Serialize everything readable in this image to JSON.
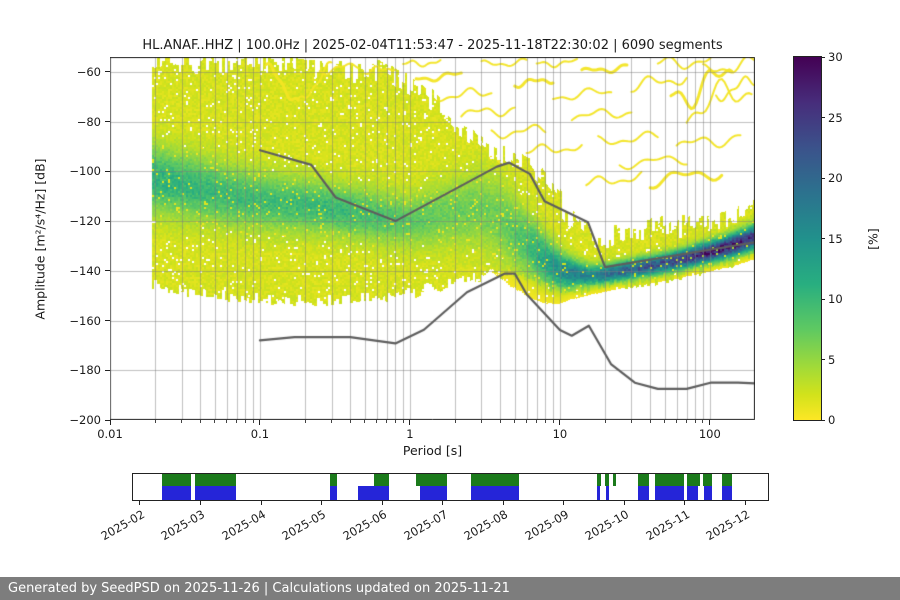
{
  "page": {
    "footer_text": "Generated by SeedPSD on 2025-11-26 | Calculations updated on 2025-11-21"
  },
  "chart_data": {
    "type": "heatmap",
    "title": "HL.ANAF..HHZ | 100.0Hz | 2025-02-04T11:53:47 - 2025-11-18T22:30:02 | 6090 segments",
    "xlabel": "Period [s]",
    "ylabel": "Amplitude [m²/s⁴/Hz] [dB]",
    "xscale": "log",
    "xlim": [
      0.01,
      200
    ],
    "ylim": [
      -200,
      -54
    ],
    "grid": true,
    "x_tick_values": [
      0.01,
      0.1,
      1,
      10,
      100
    ],
    "x_tick_labels": [
      "0.01",
      "0.1",
      "1",
      "10",
      "100"
    ],
    "y_tick_values": [
      -60,
      -80,
      -100,
      -120,
      -140,
      -160,
      -180,
      -200
    ],
    "y_tick_labels": [
      "−60",
      "−80",
      "−100",
      "−120",
      "−140",
      "−160",
      "−180",
      "−200"
    ],
    "colorbar": {
      "label": "[%]",
      "min": 0,
      "max": 30,
      "tick_values": [
        0,
        5,
        10,
        15,
        20,
        25,
        30
      ],
      "tick_labels": [
        "0",
        "5",
        "10",
        "15",
        "20",
        "25",
        "30"
      ],
      "colormap": "viridis_r",
      "stops": [
        {
          "v": 0.0,
          "c": "#fde725"
        },
        {
          "v": 0.07,
          "c": "#d2e21b"
        },
        {
          "v": 0.14,
          "c": "#a5db36"
        },
        {
          "v": 0.25,
          "c": "#5ec962"
        },
        {
          "v": 0.375,
          "c": "#28ae80"
        },
        {
          "v": 0.5,
          "c": "#21918c"
        },
        {
          "v": 0.625,
          "c": "#2c728e"
        },
        {
          "v": 0.75,
          "c": "#3b528b"
        },
        {
          "v": 0.875,
          "c": "#472d7b"
        },
        {
          "v": 1.0,
          "c": "#440154"
        }
      ]
    },
    "noise_models": {
      "color": "#5e5e5e",
      "high_noise_model": [
        [
          0.1,
          -91.5
        ],
        [
          0.22,
          -97.4
        ],
        [
          0.32,
          -110.5
        ],
        [
          0.8,
          -120.0
        ],
        [
          3.8,
          -98.1
        ],
        [
          4.6,
          -96.5
        ],
        [
          6.3,
          -101.0
        ],
        [
          7.9,
          -112.0
        ],
        [
          15.4,
          -120.5
        ],
        [
          20.0,
          -138.5
        ],
        [
          200.0,
          -128.5
        ]
      ],
      "low_noise_model": [
        [
          0.1,
          -168.0
        ],
        [
          0.17,
          -166.7
        ],
        [
          0.4,
          -166.7
        ],
        [
          0.8,
          -169.2
        ],
        [
          1.24,
          -163.7
        ],
        [
          2.4,
          -148.6
        ],
        [
          4.3,
          -141.1
        ],
        [
          5.0,
          -141.1
        ],
        [
          6.0,
          -149.4
        ],
        [
          10.0,
          -163.8
        ],
        [
          12.0,
          -166.1
        ],
        [
          15.6,
          -162.1
        ],
        [
          21.9,
          -177.5
        ],
        [
          31.6,
          -185.0
        ],
        [
          45.0,
          -187.5
        ],
        [
          70.0,
          -187.5
        ],
        [
          101.0,
          -185.0
        ],
        [
          154.0,
          -185.0
        ],
        [
          200.0,
          -185.3
        ]
      ]
    },
    "ppsd": {
      "period_data_min": 0.019,
      "envelope_level_pct": 1.8,
      "envelope_top": [
        [
          0.019,
          -58
        ],
        [
          0.03,
          -56
        ],
        [
          0.06,
          -56
        ],
        [
          0.12,
          -56
        ],
        [
          0.25,
          -57
        ],
        [
          0.45,
          -58
        ],
        [
          0.7,
          -61
        ],
        [
          1.0,
          -65
        ],
        [
          1.5,
          -73
        ],
        [
          2.0,
          -80
        ],
        [
          3.0,
          -88
        ],
        [
          4.0,
          -93
        ],
        [
          5.0,
          -95
        ],
        [
          6.5,
          -98
        ],
        [
          8.0,
          -104
        ],
        [
          10.0,
          -112
        ],
        [
          13.0,
          -121
        ],
        [
          16.0,
          -126
        ],
        [
          20.0,
          -127
        ],
        [
          30.0,
          -126
        ],
        [
          50.0,
          -124
        ],
        [
          100.0,
          -121
        ],
        [
          200.0,
          -116
        ]
      ],
      "envelope_bottom": [
        [
          0.019,
          -146
        ],
        [
          0.04,
          -149
        ],
        [
          0.08,
          -151
        ],
        [
          0.15,
          -152
        ],
        [
          0.3,
          -152
        ],
        [
          0.6,
          -151
        ],
        [
          1.0,
          -149
        ],
        [
          1.6,
          -146
        ],
        [
          2.5,
          -143
        ],
        [
          4.0,
          -141
        ],
        [
          6.0,
          -143
        ],
        [
          9.0,
          -147
        ],
        [
          12.0,
          -148
        ],
        [
          16.0,
          -147
        ],
        [
          20.0,
          -146.5
        ],
        [
          30.0,
          -145
        ],
        [
          50.0,
          -143
        ],
        [
          100.0,
          -139
        ],
        [
          200.0,
          -134
        ]
      ],
      "band_center": [
        [
          0.019,
          -103
        ],
        [
          0.04,
          -107
        ],
        [
          0.08,
          -111
        ],
        [
          0.15,
          -113
        ],
        [
          0.3,
          -115
        ],
        [
          0.6,
          -118
        ],
        [
          1.0,
          -120
        ],
        [
          1.8,
          -117
        ],
        [
          3.0,
          -115
        ],
        [
          4.0,
          -119
        ],
        [
          5.0,
          -125
        ],
        [
          6.5,
          -131
        ],
        [
          8.0,
          -136
        ],
        [
          10.0,
          -140
        ],
        [
          13.0,
          -141.5
        ],
        [
          16.0,
          -142
        ],
        [
          20.0,
          -141.5
        ],
        [
          30.0,
          -139.5
        ],
        [
          50.0,
          -137
        ],
        [
          70.0,
          -135
        ],
        [
          100.0,
          -132.5
        ],
        [
          140.0,
          -130
        ],
        [
          200.0,
          -126.5
        ]
      ],
      "band_sigma": [
        [
          0.019,
          9
        ],
        [
          0.08,
          8
        ],
        [
          0.3,
          7
        ],
        [
          1.0,
          7
        ],
        [
          2.0,
          9
        ],
        [
          4.0,
          11
        ],
        [
          6.0,
          9
        ],
        [
          9.0,
          6
        ],
        [
          12.0,
          4
        ],
        [
          16.0,
          3
        ],
        [
          20.0,
          2.6
        ],
        [
          50.0,
          2.6
        ],
        [
          100.0,
          2.8
        ],
        [
          200.0,
          3.2
        ]
      ],
      "band_peak_pct": [
        [
          0.019,
          9
        ],
        [
          0.05,
          8
        ],
        [
          0.1,
          7.5
        ],
        [
          0.3,
          8
        ],
        [
          0.6,
          7
        ],
        [
          1.0,
          6
        ],
        [
          2.0,
          5
        ],
        [
          4.0,
          5
        ],
        [
          6.0,
          7
        ],
        [
          9.0,
          12
        ],
        [
          12.0,
          15
        ],
        [
          16.0,
          14
        ],
        [
          20.0,
          17
        ],
        [
          30.0,
          19
        ],
        [
          50.0,
          21
        ],
        [
          70.0,
          23
        ],
        [
          100.0,
          26
        ],
        [
          140.0,
          27
        ],
        [
          200.0,
          23
        ]
      ],
      "streaks": [
        [
          0.11,
          -57,
          0.18,
          -73,
          1.5
        ],
        [
          0.18,
          -73,
          0.3,
          -57,
          1.5
        ],
        [
          0.25,
          -60,
          0.45,
          -57,
          1.0
        ],
        [
          0.5,
          -60,
          0.8,
          -58,
          1.0
        ],
        [
          0.9,
          -57,
          1.6,
          -56,
          1.0
        ],
        [
          1.1,
          -63,
          2.2,
          -61,
          1.0
        ],
        [
          1.6,
          -70,
          3.5,
          -68,
          1.5
        ],
        [
          2.2,
          -77,
          5.0,
          -75,
          1.5
        ],
        [
          3.0,
          -57,
          6.0,
          -56,
          1.0
        ],
        [
          3.5,
          -85,
          8.0,
          -83,
          1.5
        ],
        [
          5.0,
          -65,
          9.0,
          -63,
          1.0
        ],
        [
          6.0,
          -92,
          14.0,
          -90,
          1.5
        ],
        [
          7.0,
          -57,
          13.0,
          -56,
          1.0
        ],
        [
          9.0,
          -70,
          22.0,
          -68,
          1.5
        ],
        [
          12.0,
          -78,
          30.0,
          -76,
          1.5
        ],
        [
          14.0,
          -60,
          28.0,
          -58,
          1.0
        ],
        [
          18.0,
          -88,
          45.0,
          -86,
          1.5
        ],
        [
          25.0,
          -97,
          70.0,
          -95,
          1.5
        ],
        [
          30.0,
          -66,
          70.0,
          -62,
          2.0
        ],
        [
          45.0,
          -57,
          110.0,
          -55,
          2.0
        ],
        [
          55.0,
          -70,
          140.0,
          -62,
          5.0
        ],
        [
          70.0,
          -76,
          190.0,
          -66,
          5.0
        ],
        [
          60.0,
          -90,
          160.0,
          -86,
          2.0
        ],
        [
          90.0,
          -60,
          200.0,
          -56,
          2.0
        ],
        [
          110.0,
          -70,
          200.0,
          -63,
          2.0
        ],
        [
          40.0,
          -104,
          120.0,
          -100,
          2.0
        ],
        [
          15.0,
          -105,
          35.0,
          -102,
          1.5
        ]
      ]
    },
    "availability": {
      "month_labels": [
        "2025-02",
        "2025-03",
        "2025-04",
        "2025-05",
        "2025-06",
        "2025-07",
        "2025-08",
        "2025-09",
        "2025-10",
        "2025-11",
        "2025-12"
      ],
      "green_color": "#1b7a1b",
      "blue_color": "#2525d8",
      "green_segments": [
        [
          0.046,
          0.092
        ],
        [
          0.098,
          0.163
        ],
        [
          0.31,
          0.322
        ],
        [
          0.38,
          0.403
        ],
        [
          0.445,
          0.494
        ],
        [
          0.532,
          0.608
        ],
        [
          0.731,
          0.737
        ],
        [
          0.744,
          0.749
        ],
        [
          0.756,
          0.761
        ],
        [
          0.795,
          0.812
        ],
        [
          0.822,
          0.868
        ],
        [
          0.872,
          0.893
        ],
        [
          0.898,
          0.912
        ],
        [
          0.927,
          0.943
        ]
      ],
      "blue_segments": [
        [
          0.046,
          0.092
        ],
        [
          0.098,
          0.163
        ],
        [
          0.311,
          0.322
        ],
        [
          0.355,
          0.403
        ],
        [
          0.452,
          0.494
        ],
        [
          0.532,
          0.608
        ],
        [
          0.731,
          0.736
        ],
        [
          0.745,
          0.749
        ],
        [
          0.795,
          0.812
        ],
        [
          0.822,
          0.867
        ],
        [
          0.872,
          0.89
        ],
        [
          0.899,
          0.912
        ],
        [
          0.928,
          0.943
        ]
      ]
    }
  }
}
